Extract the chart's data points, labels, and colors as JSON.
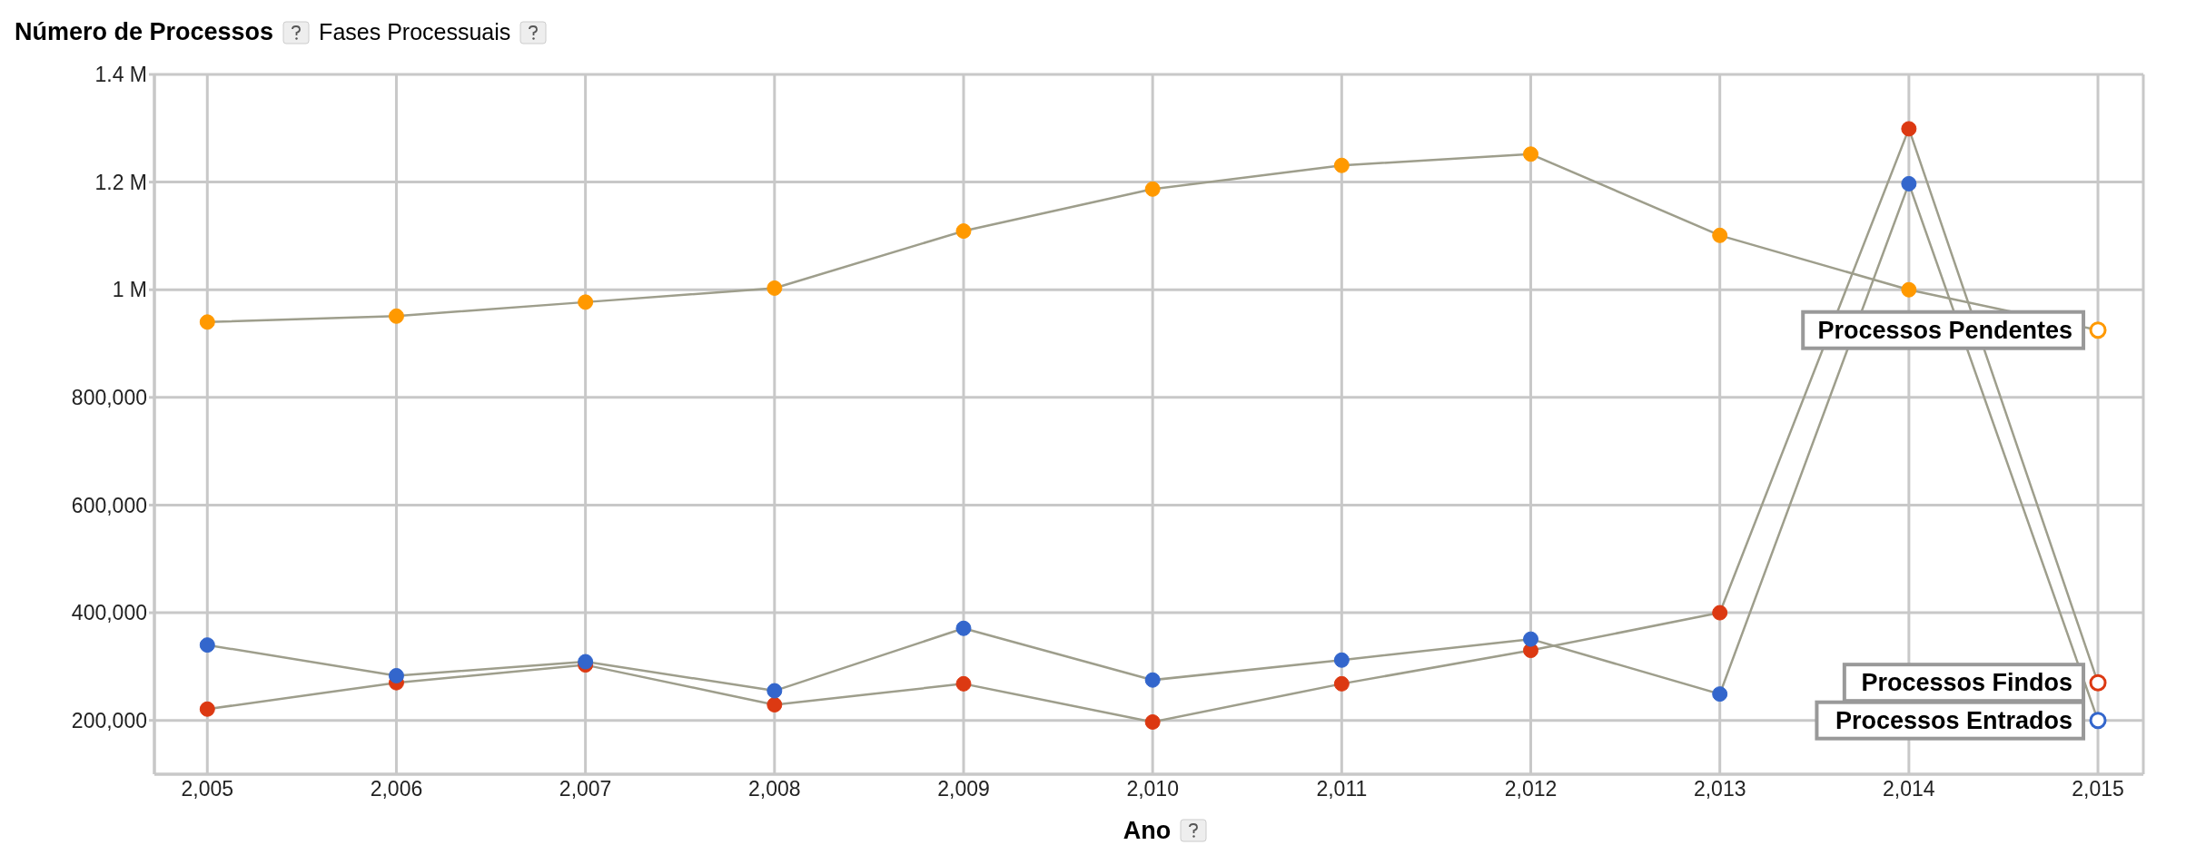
{
  "chart_data": {
    "type": "line",
    "title": "Número de Processos",
    "subtitle": "Fases Processuais",
    "xlabel": "Ano",
    "x": [
      2005,
      2006,
      2007,
      2008,
      2009,
      2010,
      2011,
      2012,
      2013,
      2014,
      2015
    ],
    "xlim": [
      2004.72,
      2015.24
    ],
    "xticks": [
      {
        "value": 2005,
        "label": "2,005"
      },
      {
        "value": 2006,
        "label": "2,006"
      },
      {
        "value": 2007,
        "label": "2,007"
      },
      {
        "value": 2008,
        "label": "2,008"
      },
      {
        "value": 2009,
        "label": "2,009"
      },
      {
        "value": 2010,
        "label": "2,010"
      },
      {
        "value": 2011,
        "label": "2,011"
      },
      {
        "value": 2012,
        "label": "2,012"
      },
      {
        "value": 2013,
        "label": "2,013"
      },
      {
        "value": 2014,
        "label": "2,014"
      },
      {
        "value": 2015,
        "label": "2,015"
      }
    ],
    "ylim": [
      100000,
      1400000
    ],
    "yticks": [
      {
        "value": 200000,
        "label": "200,000"
      },
      {
        "value": 400000,
        "label": "400,000"
      },
      {
        "value": 600000,
        "label": "600,000"
      },
      {
        "value": 800000,
        "label": "800,000"
      },
      {
        "value": 1000000,
        "label": "1 M"
      },
      {
        "value": 1200000,
        "label": "1.2 M"
      },
      {
        "value": 1400000,
        "label": "1.4 M"
      }
    ],
    "grid": true,
    "marker": "circle",
    "series": [
      {
        "name": "Processos Pendentes",
        "color": "#ff9900",
        "values": [
          940000,
          951000,
          977000,
          1003000,
          1109000,
          1187000,
          1231000,
          1252000,
          1101000,
          1000000,
          925000
        ]
      },
      {
        "name": "Processos Findos",
        "color": "#dc3912",
        "values": [
          221000,
          270000,
          303000,
          229000,
          268000,
          197000,
          268000,
          330000,
          400000,
          1299000,
          270000
        ]
      },
      {
        "name": "Processos Entrados",
        "color": "#3366cc",
        "values": [
          340000,
          283000,
          309000,
          255000,
          371000,
          275000,
          312000,
          351000,
          249000,
          1197000,
          200000
        ]
      }
    ]
  }
}
